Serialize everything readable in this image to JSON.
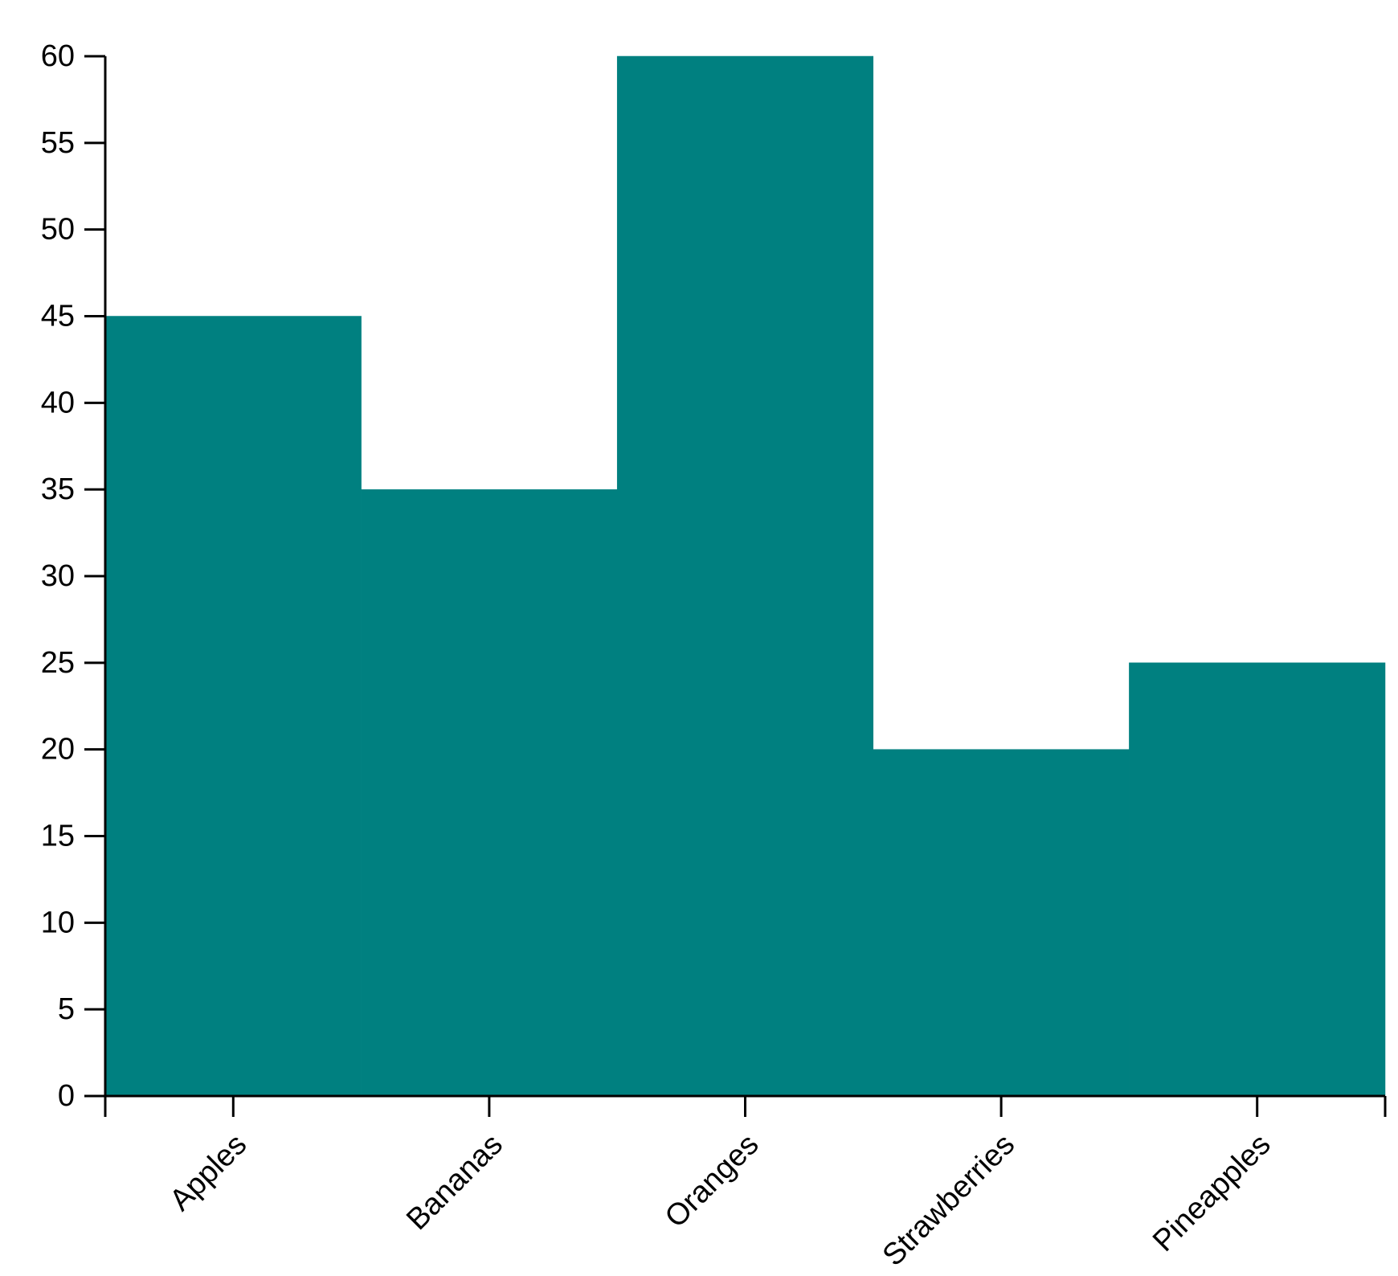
{
  "chart_data": {
    "type": "bar",
    "title": "",
    "xlabel": "",
    "ylabel": "",
    "categories": [
      "Apples",
      "Bananas",
      "Oranges",
      "Strawberries",
      "Pineapples"
    ],
    "values": [
      45,
      35,
      60,
      20,
      25
    ],
    "ylim": [
      0,
      60
    ],
    "yticks": [
      0,
      5,
      10,
      15,
      20,
      25,
      30,
      35,
      40,
      45,
      50,
      55,
      60
    ],
    "grid": false,
    "legend": "none",
    "bar_color": "#008080",
    "axis_color": "#000000"
  }
}
